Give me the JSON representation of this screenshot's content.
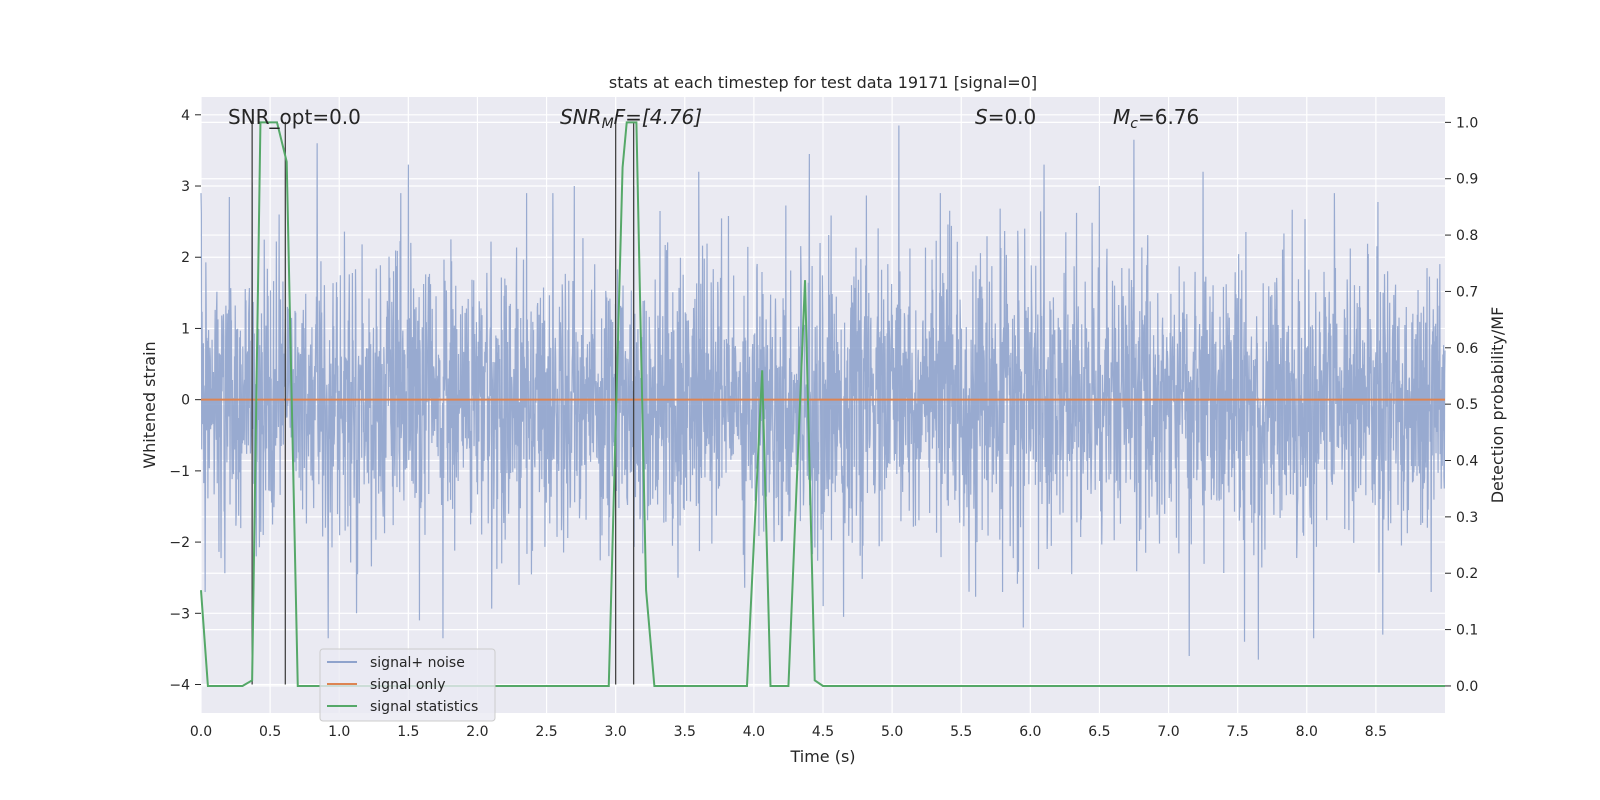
{
  "chart_data": {
    "type": "line",
    "title": "stats at each timestep for test data 19171 [signal=0]",
    "xlabel": "Time (s)",
    "ylabel": "Whitened strain",
    "ylabel_right": "Detection probability/MF",
    "xlim": [
      0,
      9.0
    ],
    "ylim": [
      -4.4,
      4.25
    ],
    "ylim_right": [
      -0.048,
      1.045
    ],
    "x_ticks": [
      "0.0",
      "0.5",
      "1.0",
      "1.5",
      "2.0",
      "2.5",
      "3.0",
      "3.5",
      "4.0",
      "4.5",
      "5.0",
      "5.5",
      "6.0",
      "6.5",
      "7.0",
      "7.5",
      "8.0",
      "8.5"
    ],
    "y_ticks": [
      "4",
      "3",
      "2",
      "1",
      "0",
      "−1",
      "−2",
      "−3",
      "−4"
    ],
    "y_ticks_right": [
      "1.0",
      "0.9",
      "0.8",
      "0.7",
      "0.6",
      "0.5",
      "0.4",
      "0.3",
      "0.2",
      "0.1",
      "0.0"
    ],
    "grid": true,
    "legend_position": "lower-left",
    "annotations": {
      "snr_opt": "SNR_opt=0.0",
      "snr_mf_main": "SNR",
      "snr_mf_sub": "M",
      "snr_mf_rest": "F=[4.76]",
      "s_main": "S",
      "s_rest": "=0.0",
      "mc_main": "M",
      "mc_sub": "c",
      "mc_rest": "=6.76"
    },
    "series": [
      {
        "name": "signal+ noise",
        "color": "#8fa3cc",
        "description": "whitened noise, approx. gaussian sigma ~1, range about -3.7 to 3.9",
        "peaks": [
          [
            0.0,
            2.9
          ],
          [
            0.37,
            3.05
          ],
          [
            0.84,
            3.6
          ],
          [
            1.5,
            3.3
          ],
          [
            1.75,
            2.8
          ],
          [
            2.7,
            3.0
          ],
          [
            3.13,
            3.0
          ],
          [
            3.6,
            3.2
          ],
          [
            4.4,
            3.45
          ],
          [
            5.05,
            3.85
          ],
          [
            5.35,
            2.9
          ],
          [
            6.1,
            3.3
          ],
          [
            6.5,
            3.0
          ],
          [
            6.75,
            3.65
          ],
          [
            7.25,
            3.2
          ],
          [
            8.2,
            2.9
          ],
          [
            8.9,
            2.5
          ]
        ],
        "troughs": [
          [
            0.03,
            -2.7
          ],
          [
            0.4,
            -2.2
          ],
          [
            0.92,
            -3.35
          ],
          [
            1.58,
            -3.1
          ],
          [
            1.75,
            -3.35
          ],
          [
            2.3,
            -2.6
          ],
          [
            3.45,
            -2.5
          ],
          [
            4.5,
            -2.9
          ],
          [
            4.65,
            -3.05
          ],
          [
            5.8,
            -2.7
          ],
          [
            5.95,
            -3.2
          ],
          [
            7.15,
            -3.6
          ],
          [
            7.55,
            -3.4
          ],
          [
            7.65,
            -3.65
          ],
          [
            8.05,
            -3.35
          ],
          [
            8.55,
            -3.3
          ],
          [
            8.9,
            -2.7
          ]
        ]
      },
      {
        "name": "signal only",
        "color": "#dd8452",
        "x": [
          0,
          9.0
        ],
        "y": [
          0,
          0
        ]
      },
      {
        "name": "signal statistics",
        "color": "#55a868",
        "axis": "right",
        "x": [
          0.0,
          0.05,
          0.1,
          0.3,
          0.37,
          0.43,
          0.55,
          0.62,
          0.7,
          2.95,
          3.05,
          3.08,
          3.15,
          3.22,
          3.28,
          3.95,
          4.06,
          4.12,
          4.25,
          4.37,
          4.44,
          4.5,
          9.0
        ],
        "y": [
          0.17,
          0.0,
          0.0,
          0.0,
          0.01,
          1.0,
          1.0,
          0.93,
          0.0,
          0.0,
          0.92,
          1.0,
          1.0,
          0.17,
          0.0,
          0.0,
          0.56,
          0.0,
          0.0,
          0.72,
          0.01,
          0.0,
          0.0
        ]
      }
    ],
    "vlines": [
      0.37,
      0.61,
      3.0,
      3.13
    ]
  }
}
